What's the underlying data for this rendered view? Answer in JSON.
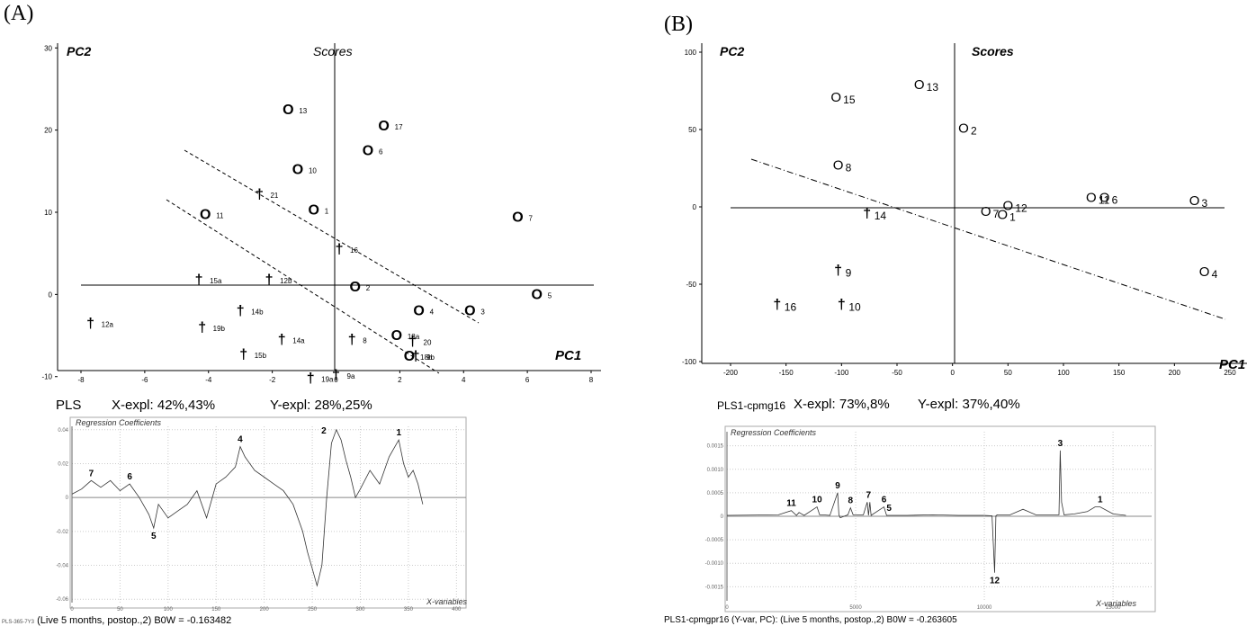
{
  "panel_a": {
    "label": "(A)",
    "scores": {
      "title": "Scores",
      "xlabel": "PC1",
      "ylabel": "PC2",
      "x_ticks": [
        "-8",
        "-6",
        "-4",
        "-2",
        "0",
        "2",
        "4",
        "6",
        "8"
      ],
      "y_ticks": [
        "-10",
        "0",
        "10",
        "20",
        "30"
      ]
    },
    "stats": {
      "model": "PLS",
      "x_expl": "X-expl: 42%,43%",
      "y_expl": "Y-expl: 28%,25%"
    },
    "regression": {
      "title": "Regression Coefficients",
      "xlabel": "X-variables",
      "y_ticks": [
        "0.04",
        "0.02",
        "0",
        "-0.02",
        "-0.04",
        "-0.06"
      ],
      "x_ticks": [
        "0",
        "50",
        "100",
        "150",
        "200",
        "250",
        "300",
        "350",
        "400"
      ],
      "footer_id": "PLS-365-7Y3",
      "footer": "(Live 5 months, postop.,2) B0W = -0.163482"
    }
  },
  "panel_b": {
    "label": "(B)",
    "scores": {
      "title": "Scores",
      "xlabel": "PC1",
      "ylabel": "PC2",
      "x_ticks": [
        "-200",
        "-150",
        "-100",
        "-50",
        "0",
        "50",
        "100",
        "150",
        "200",
        "250"
      ],
      "y_ticks": [
        "-100",
        "-50",
        "0",
        "50",
        "100"
      ]
    },
    "stats": {
      "model": "PLS1-cpmg16",
      "x_expl": "X-expl: 73%,8%",
      "y_expl": "Y-expl: 37%,40%"
    },
    "regression": {
      "title": "Regression Coefficients",
      "xlabel": "X-variables",
      "y_ticks": [
        "0.0015",
        "0.0010",
        "0.0005",
        "0",
        "-0.0005",
        "-0.0010",
        "-0.0015"
      ],
      "x_ticks": [
        "0",
        "5000",
        "10000",
        "15000"
      ],
      "footer": "PLS1-cpmgpr16 (Y-var, PC): (Live 5 months, postop.,2) B0W = -0.263605"
    }
  },
  "chart_data": [
    {
      "type": "scatter",
      "title": "Scores",
      "xlabel": "PC1",
      "ylabel": "PC2",
      "xlim": [
        -8,
        8
      ],
      "ylim": [
        -12,
        32
      ],
      "series": [
        {
          "name": "O",
          "points": [
            {
              "label": "13",
              "x": -1.5,
              "y": 22.5
            },
            {
              "label": "17",
              "x": 1.5,
              "y": 20.5
            },
            {
              "label": "6",
              "x": 1.0,
              "y": 17.5
            },
            {
              "label": "10",
              "x": -1.2,
              "y": 15.2
            },
            {
              "label": "1",
              "x": -0.7,
              "y": 10.3
            },
            {
              "label": "11",
              "x": -4.1,
              "y": 9.7
            },
            {
              "label": "7",
              "x": 5.7,
              "y": 9.4
            },
            {
              "label": "2",
              "x": 0.6,
              "y": 0.9
            },
            {
              "label": "5",
              "x": 6.3,
              "y": 0
            },
            {
              "label": "4",
              "x": 2.6,
              "y": -2
            },
            {
              "label": "3",
              "x": 4.2,
              "y": -2
            },
            {
              "label": "18a",
              "x": 1.9,
              "y": -5
            },
            {
              "label": "18b",
              "x": 2.3,
              "y": -7.5
            }
          ]
        },
        {
          "name": "†",
          "points": [
            {
              "label": "21",
              "x": -2.4,
              "y": 12.2
            },
            {
              "label": "16",
              "x": 0.1,
              "y": 5.5
            },
            {
              "label": "15a",
              "x": -4.3,
              "y": 1.8
            },
            {
              "label": "12b",
              "x": -2.1,
              "y": 1.8
            },
            {
              "label": "14b",
              "x": -3.0,
              "y": -2.0
            },
            {
              "label": "12a",
              "x": -7.7,
              "y": -3.5
            },
            {
              "label": "19b",
              "x": -4.2,
              "y": -4.0
            },
            {
              "label": "14a",
              "x": -1.7,
              "y": -5.5
            },
            {
              "label": "8",
              "x": 0.5,
              "y": -5.5
            },
            {
              "label": "20",
              "x": 2.4,
              "y": -5.7
            },
            {
              "label": "15b",
              "x": -2.9,
              "y": -7.3
            },
            {
              "label": "9b",
              "x": 2.5,
              "y": -7.5
            },
            {
              "label": "19a",
              "x": -0.8,
              "y": -10.2
            },
            {
              "label": "9a",
              "x": 0.0,
              "y": -9.8
            }
          ]
        }
      ]
    },
    {
      "type": "scatter",
      "title": "Scores",
      "xlabel": "PC1",
      "ylabel": "PC2",
      "xlim": [
        -200,
        250
      ],
      "ylim": [
        -100,
        100
      ],
      "series": [
        {
          "name": "O",
          "points": [
            {
              "label": "13",
              "x": -30,
              "y": 79
            },
            {
              "label": "15",
              "x": -105,
              "y": 71
            },
            {
              "label": "2",
              "x": 10,
              "y": 51
            },
            {
              "label": "8",
              "x": -103,
              "y": 27
            },
            {
              "label": "11",
              "x": 125,
              "y": 6
            },
            {
              "label": "6",
              "x": 137,
              "y": 6
            },
            {
              "label": "3",
              "x": 218,
              "y": 4
            },
            {
              "label": "12",
              "x": 50,
              "y": 1
            },
            {
              "label": "7",
              "x": 30,
              "y": -3
            },
            {
              "label": "1",
              "x": 45,
              "y": -5
            },
            {
              "label": "4",
              "x": 227,
              "y": -42
            }
          ]
        },
        {
          "name": "†",
          "points": [
            {
              "label": "14",
              "x": -77,
              "y": -4
            },
            {
              "label": "9",
              "x": -103,
              "y": -41
            },
            {
              "label": "16",
              "x": -158,
              "y": -63
            },
            {
              "label": "10",
              "x": -100,
              "y": -63
            }
          ]
        }
      ]
    },
    {
      "type": "line",
      "title": "Regression Coefficients",
      "xlabel": "X-variables",
      "xlim": [
        0,
        410
      ],
      "ylim": [
        -0.062,
        0.042
      ],
      "x": [
        0,
        10,
        20,
        30,
        40,
        50,
        60,
        70,
        80,
        85,
        90,
        100,
        110,
        120,
        130,
        140,
        150,
        160,
        170,
        175,
        180,
        190,
        200,
        210,
        220,
        230,
        240,
        245,
        250,
        255,
        260,
        265,
        270,
        275,
        280,
        285,
        290,
        295,
        300,
        310,
        320,
        330,
        340,
        345,
        350,
        355,
        360,
        365
      ],
      "values": [
        0.002,
        0.005,
        0.01,
        0.006,
        0.01,
        0.004,
        0.008,
        0.0,
        -0.01,
        -0.018,
        -0.004,
        -0.012,
        -0.008,
        -0.004,
        0.004,
        -0.012,
        0.008,
        0.012,
        0.018,
        0.03,
        0.024,
        0.016,
        0.012,
        0.008,
        0.004,
        -0.004,
        -0.02,
        -0.032,
        -0.042,
        -0.052,
        -0.04,
        0.0,
        0.032,
        0.04,
        0.034,
        0.022,
        0.012,
        0.0,
        0.005,
        0.016,
        0.008,
        0.024,
        0.034,
        0.02,
        0.012,
        0.016,
        0.008,
        -0.004
      ],
      "peak_labels": [
        {
          "label": "7",
          "x": 20,
          "y": 0.01
        },
        {
          "label": "6",
          "x": 60,
          "y": 0.008
        },
        {
          "label": "5",
          "x": 85,
          "y": -0.018
        },
        {
          "label": "4",
          "x": 175,
          "y": 0.03
        },
        {
          "label": "2",
          "x": 262,
          "y": 0.035
        },
        {
          "label": "1",
          "x": 340,
          "y": 0.034
        }
      ]
    },
    {
      "type": "line",
      "title": "Regression Coefficients",
      "xlabel": "X-variables",
      "xlim": [
        0,
        16500
      ],
      "ylim": [
        -0.0018,
        0.0018
      ],
      "x": [
        0,
        2000,
        2500,
        2700,
        2800,
        3000,
        3500,
        3600,
        3700,
        4000,
        4300,
        4350,
        4400,
        4700,
        4800,
        4900,
        5300,
        5450,
        5500,
        5550,
        5600,
        6100,
        6200,
        6300,
        7000,
        8000,
        9000,
        10000,
        10300,
        10400,
        10450,
        10500,
        11000,
        11500,
        12000,
        12500,
        12900,
        12950,
        13000,
        13100,
        13500,
        14000,
        14300,
        14500,
        15000,
        15500
      ],
      "values": [
        2e-05,
        3e-05,
        0.00012,
        2e-05,
        8e-05,
        2e-05,
        0.0002,
        3e-05,
        3e-05,
        2e-05,
        0.0005,
        3e-05,
        -3e-05,
        3e-05,
        0.00018,
        3e-05,
        3e-05,
        0.0003,
        2e-05,
        0.0003,
        2e-05,
        0.0002,
        2e-05,
        2e-05,
        2e-05,
        3e-05,
        2e-05,
        2e-05,
        1e-05,
        -0.0012,
        1e-05,
        3e-05,
        3e-05,
        0.00015,
        3e-05,
        3e-05,
        3e-05,
        0.0014,
        0.0003,
        3e-05,
        5e-05,
        0.0001,
        0.0002,
        0.0002,
        5e-05,
        2e-05
      ],
      "peak_labels": [
        {
          "label": "11",
          "x": 2500,
          "y": 0.00012
        },
        {
          "label": "10",
          "x": 3500,
          "y": 0.0002
        },
        {
          "label": "9",
          "x": 4300,
          "y": 0.0005
        },
        {
          "label": "8",
          "x": 4800,
          "y": 0.00018
        },
        {
          "label": "7",
          "x": 5500,
          "y": 0.0003
        },
        {
          "label": "6",
          "x": 6100,
          "y": 0.0002
        },
        {
          "label": "5",
          "x": 6300,
          "y": 2e-05
        },
        {
          "label": "12",
          "x": 10400,
          "y": -0.0012
        },
        {
          "label": "3",
          "x": 12950,
          "y": 0.0014
        },
        {
          "label": "1",
          "x": 14500,
          "y": 0.0002
        }
      ]
    }
  ]
}
